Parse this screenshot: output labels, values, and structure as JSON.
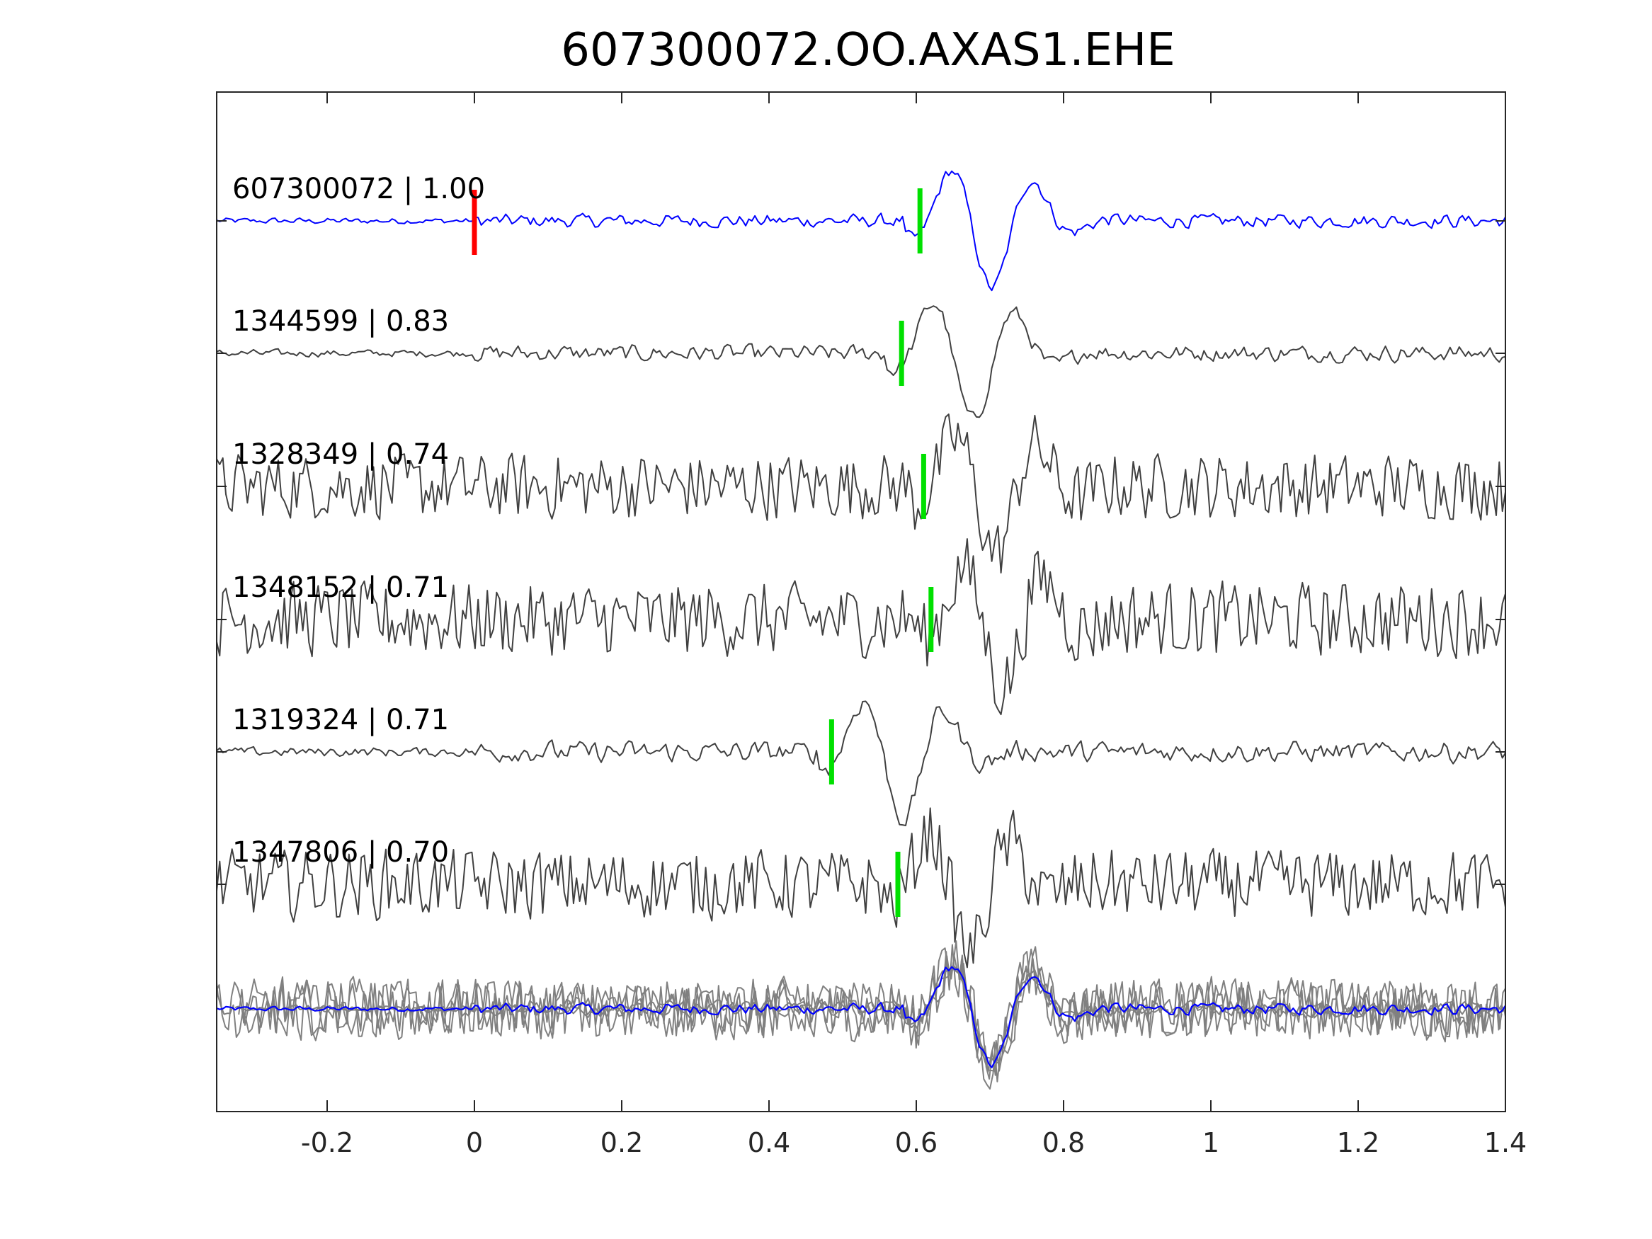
{
  "chart_data": {
    "type": "line",
    "title": "607300072.OO.AXAS1.EHE",
    "xlabel": "",
    "ylabel": "",
    "xlim": [
      -0.35,
      1.4
    ],
    "xticks": [
      -0.2,
      0,
      0.2,
      0.4,
      0.6,
      0.8,
      1,
      1.2,
      1.4
    ],
    "xtick_labels": [
      "-0.2",
      "0",
      "0.2",
      "0.4",
      "0.6",
      "0.8",
      "1",
      "1.2",
      "1.4"
    ],
    "grid": false,
    "legend": "none",
    "colors": {
      "template": "#0000ff",
      "detection": "#404040",
      "stack": "#808080",
      "reference_pick": "#ff0000",
      "detection_pick": "#00e000",
      "axes": "#262626"
    },
    "traces": [
      {
        "name": "607300072 | 1.00",
        "correlation": 1.0,
        "pick_time": 0.605,
        "is_template": true
      },
      {
        "name": "1344599 | 0.83",
        "correlation": 0.83,
        "pick_time": 0.58,
        "is_template": false
      },
      {
        "name": "1328349 | 0.74",
        "correlation": 0.74,
        "pick_time": 0.61,
        "is_template": false
      },
      {
        "name": "1348152 | 0.71",
        "correlation": 0.71,
        "pick_time": 0.62,
        "is_template": false
      },
      {
        "name": "1319324 | 0.71",
        "correlation": 0.71,
        "pick_time": 0.485,
        "is_template": false
      },
      {
        "name": "1347806 | 0.70",
        "correlation": 0.7,
        "pick_time": 0.575,
        "is_template": false
      }
    ],
    "reference_pick_time": 0.0,
    "annotations": [
      "607300072 | 1.00",
      "1344599 | 0.83",
      "1328349 | 0.74",
      "1348152 | 0.71",
      "1319324 | 0.71",
      "1347806 | 0.70"
    ]
  }
}
